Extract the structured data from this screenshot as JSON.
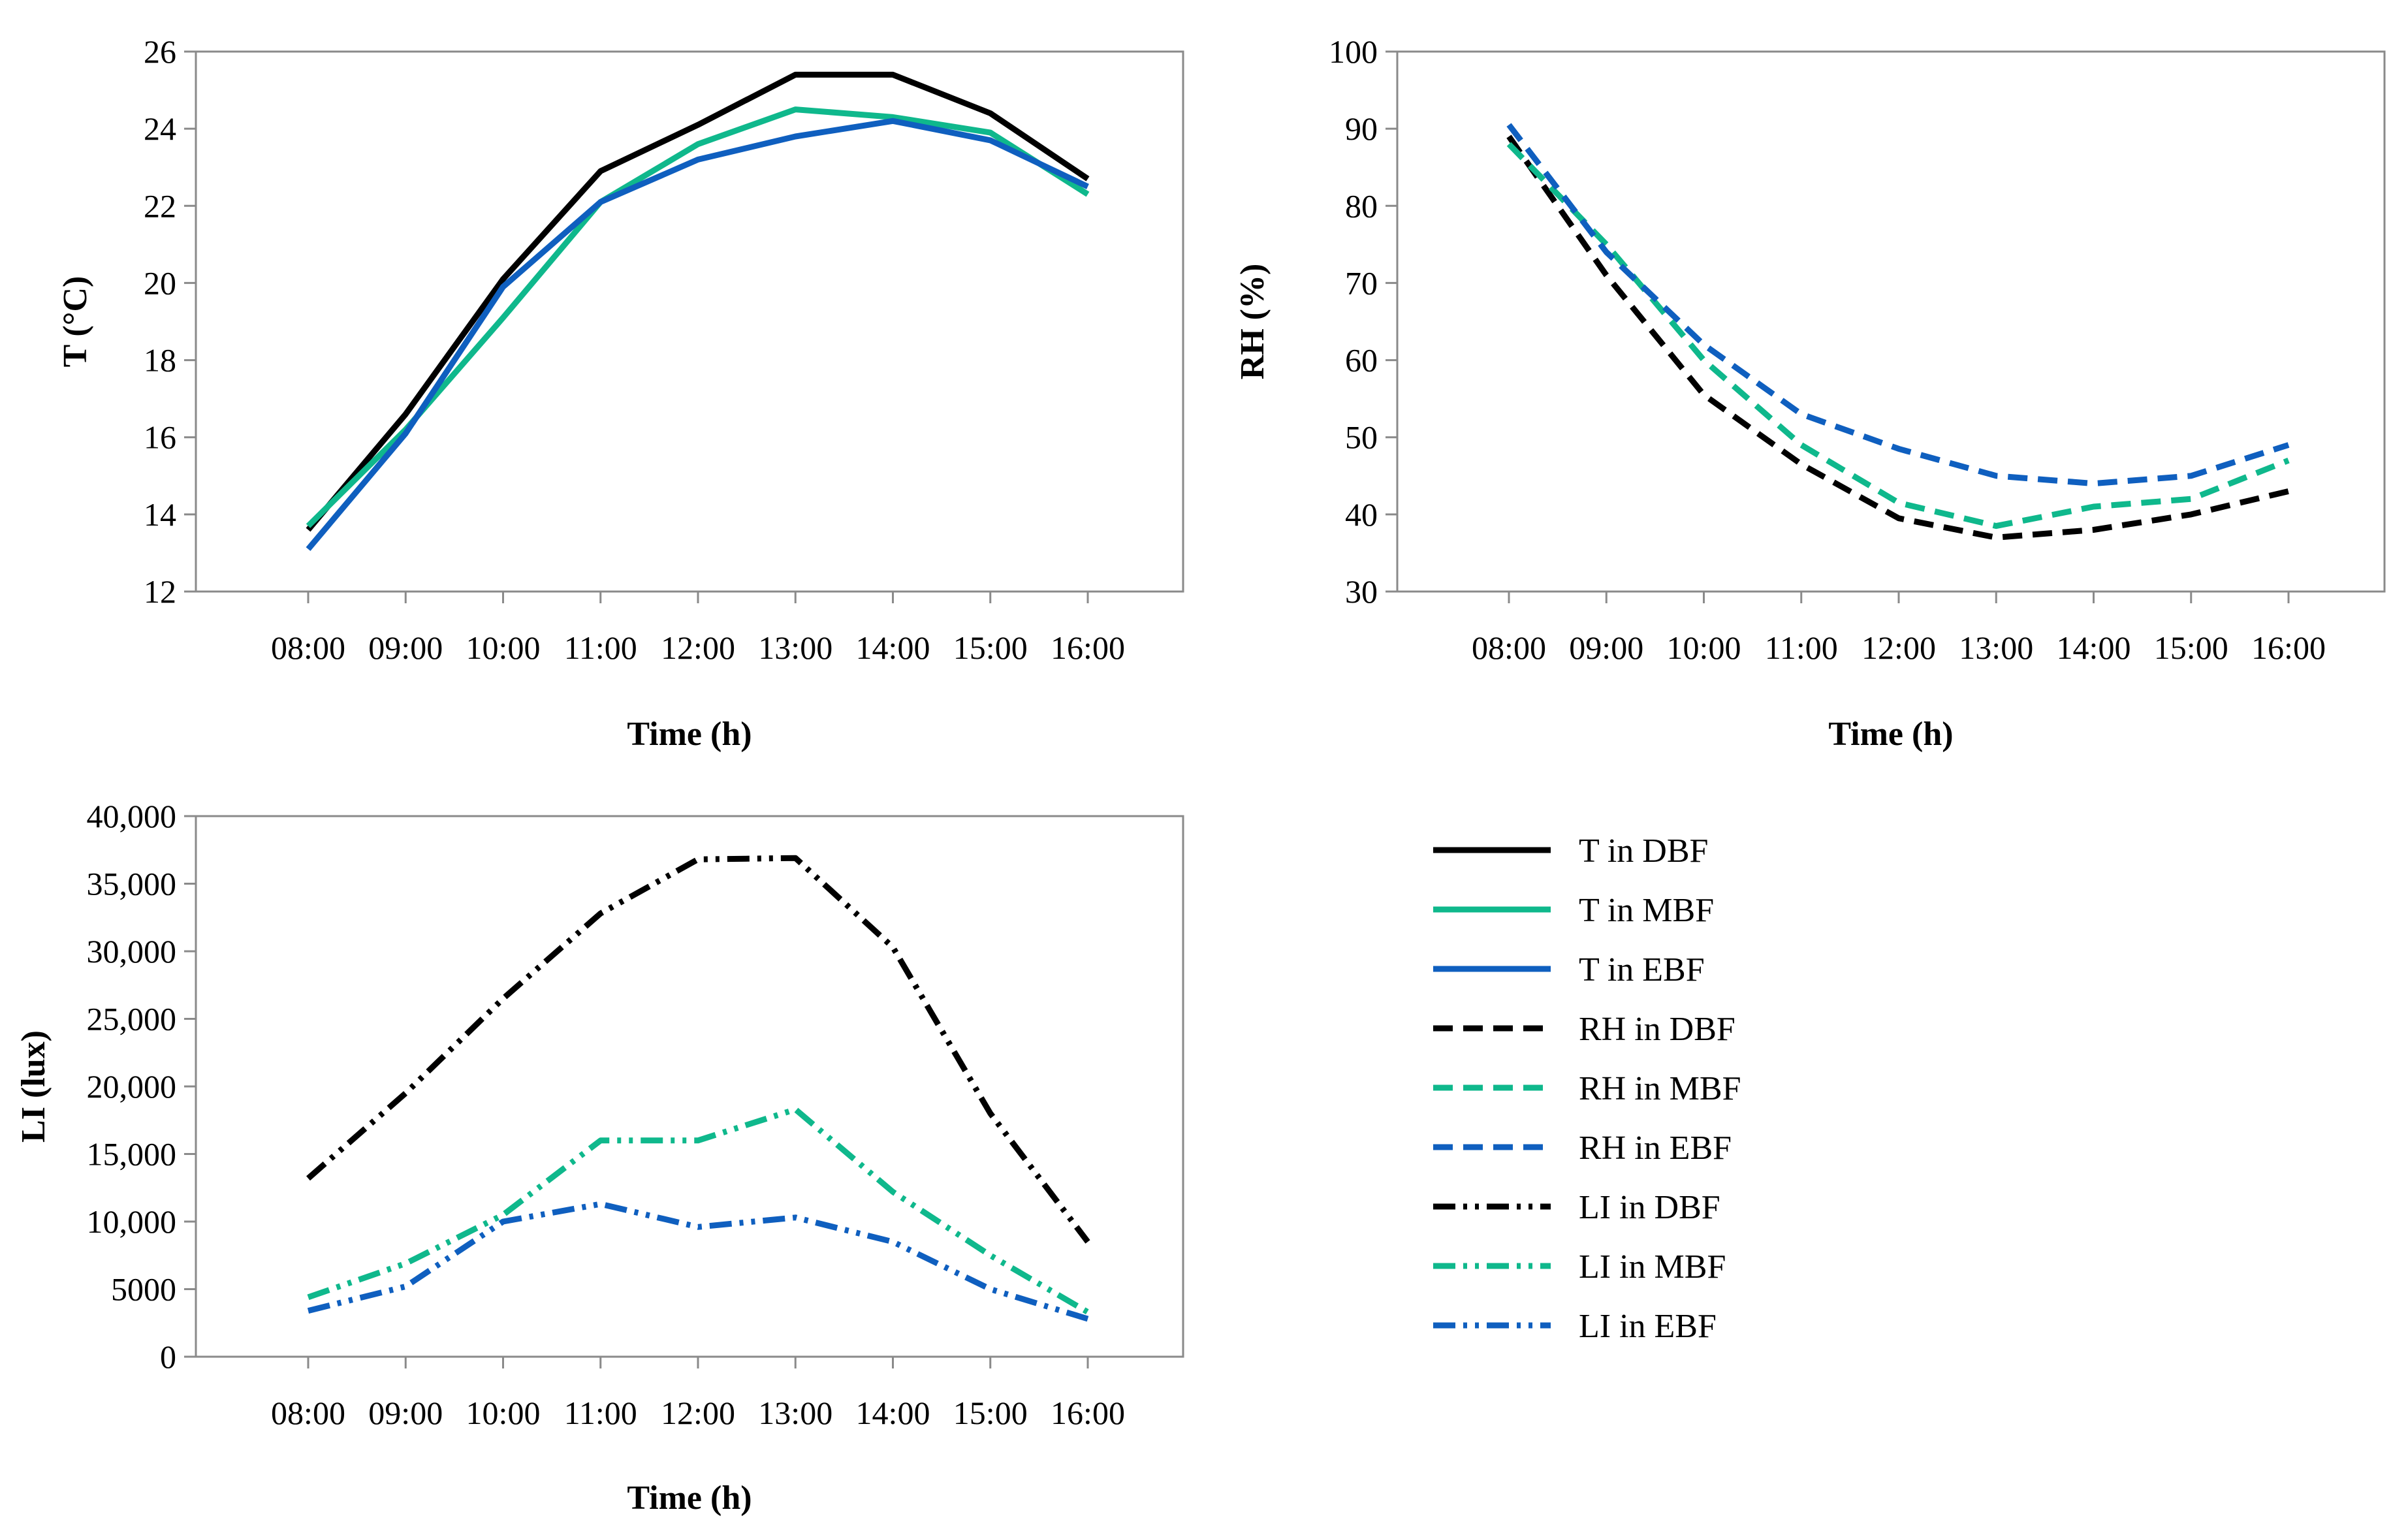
{
  "colors": {
    "DBF": "#000000",
    "MBF": "#0fb88c",
    "EBF": "#0f5fbf",
    "frame": "#8a8a8a"
  },
  "chart_data": [
    {
      "type": "line",
      "id": "temperature",
      "title": "",
      "xlabel": "Time (h)",
      "ylabel": "T (°C)",
      "categories": [
        "08:00",
        "09:00",
        "10:00",
        "11:00",
        "12:00",
        "13:00",
        "14:00",
        "15:00",
        "16:00"
      ],
      "ylim": [
        12,
        26
      ],
      "ytick_values": [
        12,
        14,
        16,
        18,
        20,
        22,
        24,
        26
      ],
      "ytick_labels": [
        "12",
        "14",
        "16",
        "18",
        "20",
        "22",
        "24",
        "26"
      ],
      "series": [
        {
          "name": "T in DBF",
          "group": "DBF",
          "dash": "solid",
          "values": [
            13.6,
            16.6,
            20.1,
            22.9,
            24.1,
            25.4,
            25.4,
            24.4,
            22.7
          ]
        },
        {
          "name": "T in MBF",
          "group": "MBF",
          "dash": "solid",
          "values": [
            13.7,
            16.2,
            19.1,
            22.1,
            23.6,
            24.5,
            24.3,
            23.9,
            22.3
          ]
        },
        {
          "name": "T in EBF",
          "group": "EBF",
          "dash": "solid",
          "values": [
            13.1,
            16.1,
            19.9,
            22.1,
            23.2,
            23.8,
            24.2,
            23.7,
            22.5
          ]
        }
      ]
    },
    {
      "type": "line",
      "id": "humidity",
      "title": "",
      "xlabel": "Time (h)",
      "ylabel": "RH (%)",
      "categories": [
        "08:00",
        "09:00",
        "10:00",
        "11:00",
        "12:00",
        "13:00",
        "14:00",
        "15:00",
        "16:00"
      ],
      "ylim": [
        30,
        100
      ],
      "ytick_values": [
        30,
        40,
        50,
        60,
        70,
        80,
        90,
        100
      ],
      "ytick_labels": [
        "30",
        "40",
        "50",
        "60",
        "70",
        "80",
        "90",
        "100"
      ],
      "series": [
        {
          "name": "RH in DBF",
          "group": "DBF",
          "dash": "dashed",
          "values": [
            89,
            71,
            55.5,
            46.5,
            39.5,
            37,
            38,
            40,
            43
          ]
        },
        {
          "name": "RH in MBF",
          "group": "MBF",
          "dash": "dashed",
          "values": [
            88,
            75,
            60,
            49,
            41.5,
            38.5,
            41,
            42,
            47
          ]
        },
        {
          "name": "RH in EBF",
          "group": "EBF",
          "dash": "dashed",
          "values": [
            90.5,
            74,
            62,
            53,
            48.5,
            45,
            44,
            45,
            49
          ]
        }
      ]
    },
    {
      "type": "line",
      "id": "light",
      "title": "",
      "xlabel": "Time (h)",
      "ylabel": "LI (lux)",
      "categories": [
        "08:00",
        "09:00",
        "10:00",
        "11:00",
        "12:00",
        "13:00",
        "14:00",
        "15:00",
        "16:00"
      ],
      "ylim": [
        0,
        40000
      ],
      "ytick_values": [
        0,
        5000,
        10000,
        15000,
        20000,
        25000,
        30000,
        35000,
        40000
      ],
      "ytick_labels": [
        "0",
        "5000",
        "10,000",
        "15,000",
        "20,000",
        "25,000",
        "30,000",
        "35,000",
        "40,000"
      ],
      "series": [
        {
          "name": "LI in DBF",
          "group": "DBF",
          "dash": "dashdotdot",
          "values": [
            13200,
            19500,
            26500,
            32800,
            36800,
            36900,
            30300,
            18000,
            8500
          ]
        },
        {
          "name": "LI in MBF",
          "group": "MBF",
          "dash": "dashdotdot",
          "values": [
            4400,
            6900,
            10500,
            16000,
            16000,
            18300,
            12200,
            7500,
            3300
          ]
        },
        {
          "name": "LI in EBF",
          "group": "EBF",
          "dash": "dashdotdot",
          "values": [
            3400,
            5200,
            10000,
            11300,
            9600,
            10300,
            8500,
            5000,
            2800
          ]
        }
      ]
    }
  ],
  "legend": [
    {
      "label": "T in DBF",
      "group": "DBF",
      "dash": "solid"
    },
    {
      "label": "T in MBF",
      "group": "MBF",
      "dash": "solid"
    },
    {
      "label": "T in EBF",
      "group": "EBF",
      "dash": "solid"
    },
    {
      "label": "RH in DBF",
      "group": "DBF",
      "dash": "dashed"
    },
    {
      "label": "RH in MBF",
      "group": "MBF",
      "dash": "dashed"
    },
    {
      "label": "RH in EBF",
      "group": "EBF",
      "dash": "dashed"
    },
    {
      "label": "LI in DBF",
      "group": "DBF",
      "dash": "dashdotdot"
    },
    {
      "label": "LI in MBF",
      "group": "MBF",
      "dash": "dashdotdot"
    },
    {
      "label": "LI in EBF",
      "group": "EBF",
      "dash": "dashdotdot"
    }
  ]
}
